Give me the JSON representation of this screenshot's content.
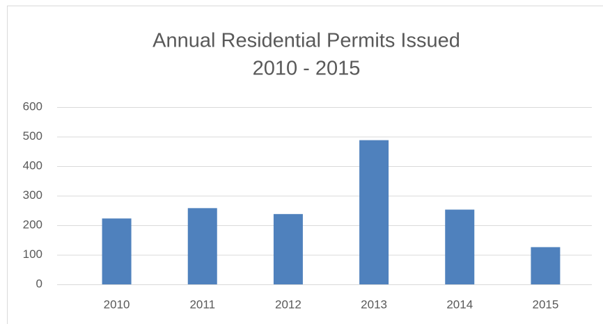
{
  "chart_data": {
    "type": "bar",
    "title": "Annual Residential Permits Issued",
    "subtitle": "2010 - 2015",
    "categories": [
      "2010",
      "2011",
      "2012",
      "2013",
      "2014",
      "2015"
    ],
    "values": [
      223,
      258,
      238,
      488,
      253,
      126
    ],
    "color": "#4f81bd",
    "ylim": [
      0,
      600
    ],
    "yticks": [
      0,
      100,
      200,
      300,
      400,
      500,
      600
    ],
    "grid": true
  }
}
